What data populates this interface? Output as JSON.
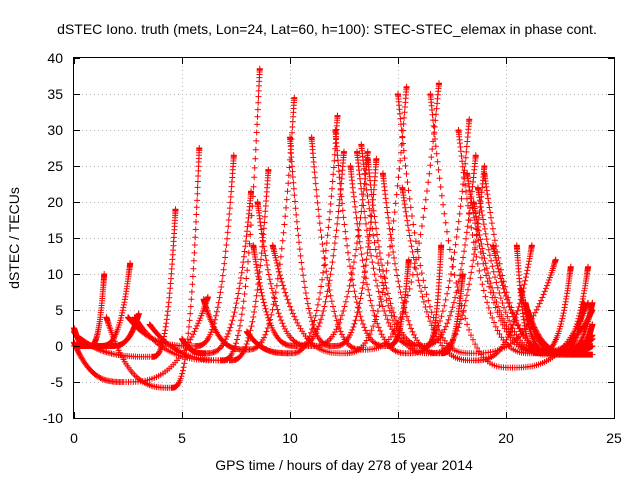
{
  "chart_data": {
    "type": "scatter",
    "title": "dSTEC Iono. truth (mets, Lon=24, Lat=60, h=100): STEC-STEC_elemax in phase cont.",
    "xlabel": "GPS time / hours of day 278 of year 2014",
    "ylabel": "dSTEC  / TECUs",
    "xlim": [
      0,
      25
    ],
    "ylim": [
      -10,
      40
    ],
    "xticks": [
      0,
      5,
      10,
      15,
      20,
      25
    ],
    "yticks": [
      -10,
      -5,
      0,
      5,
      10,
      15,
      20,
      25,
      30,
      35,
      40
    ],
    "grid": true,
    "legend": "none",
    "marker": "+",
    "color": "#ff0000",
    "arcs": [
      {
        "t0": 0.0,
        "tmin": 0.7,
        "t1": 1.4,
        "vmin": 0.0,
        "v0": 2.5,
        "v1": 10.0
      },
      {
        "t0": 0.0,
        "tmin": 1.2,
        "t1": 2.6,
        "vmin": 0.0,
        "v0": 2.0,
        "v1": 11.5
      },
      {
        "t0": 0.0,
        "tmin": 1.7,
        "t1": 3.0,
        "vmin": 0.0,
        "v0": 0.0,
        "v1": 4.5
      },
      {
        "t0": 0.0,
        "tmin": 2.3,
        "t1": 6.2,
        "vmin": -5.0,
        "v0": 0.5,
        "v1": 6.8
      },
      {
        "t0": 0.3,
        "tmin": 3.6,
        "t1": 4.7,
        "vmin": -1.5,
        "v0": 1.0,
        "v1": 19.0
      },
      {
        "t0": 1.5,
        "tmin": 4.5,
        "t1": 5.8,
        "vmin": -5.8,
        "v0": 4.0,
        "v1": 27.5
      },
      {
        "t0": 2.5,
        "tmin": 5.6,
        "t1": 7.4,
        "vmin": 0.0,
        "v0": 4.0,
        "v1": 26.5
      },
      {
        "t0": 2.8,
        "tmin": 6.8,
        "t1": 8.6,
        "vmin": -2.0,
        "v0": 4.0,
        "v1": 38.5
      },
      {
        "t0": 3.5,
        "tmin": 7.2,
        "t1": 9.0,
        "vmin": -2.0,
        "v0": 3.0,
        "v1": 24.5
      },
      {
        "t0": 5.0,
        "tmin": 6.1,
        "t1": 8.2,
        "vmin": -1.0,
        "v0": 1.0,
        "v1": 21.5
      },
      {
        "t0": 6.0,
        "tmin": 8.0,
        "t1": 10.2,
        "vmin": -0.5,
        "v0": 6.5,
        "v1": 34.5
      },
      {
        "t0": 8.0,
        "tmin": 10.0,
        "t1": 12.2,
        "vmin": -1.0,
        "v0": 2.0,
        "v1": 32.0
      },
      {
        "t0": 8.3,
        "tmin": 10.3,
        "t1": 12.5,
        "vmin": 0.0,
        "v0": 14.0,
        "v1": 27.0
      },
      {
        "t0": 8.5,
        "tmin": 11.0,
        "t1": 13.6,
        "vmin": 0.0,
        "v0": 20.0,
        "v1": 27.0
      },
      {
        "t0": 9.2,
        "tmin": 12.5,
        "t1": 15.4,
        "vmin": -1.0,
        "v0": 14.0,
        "v1": 36.0
      },
      {
        "t0": 10.0,
        "tmin": 12.0,
        "t1": 14.0,
        "vmin": 0.0,
        "v0": 29.0,
        "v1": 26.0
      },
      {
        "t0": 11.0,
        "tmin": 13.4,
        "t1": 16.9,
        "vmin": -0.5,
        "v0": 29.0,
        "v1": 36.5
      },
      {
        "t0": 12.1,
        "tmin": 14.5,
        "t1": 15.5,
        "vmin": 0.0,
        "v0": 30.0,
        "v1": 12.0
      },
      {
        "t0": 12.8,
        "tmin": 15.5,
        "t1": 18.3,
        "vmin": -1.0,
        "v0": 25.0,
        "v1": 31.5
      },
      {
        "t0": 13.1,
        "tmin": 16.0,
        "t1": 18.6,
        "vmin": 0.0,
        "v0": 27.0,
        "v1": 26.5
      },
      {
        "t0": 13.3,
        "tmin": 16.5,
        "t1": 19.0,
        "vmin": -1.0,
        "v0": 28.0,
        "v1": 25.0
      },
      {
        "t0": 13.6,
        "tmin": 16.3,
        "t1": 17.0,
        "vmin": 0.0,
        "v0": 26.0,
        "v1": 14.0
      },
      {
        "t0": 14.3,
        "tmin": 17.0,
        "t1": 18.0,
        "vmin": -1.0,
        "v0": 24.0,
        "v1": 10.0
      },
      {
        "t0": 15.0,
        "tmin": 18.4,
        "t1": 22.3,
        "vmin": -1.0,
        "v0": 35.0,
        "v1": 12.0
      },
      {
        "t0": 15.2,
        "tmin": 18.5,
        "t1": 21.2,
        "vmin": -2.0,
        "v0": 22.0,
        "v1": 14.0
      },
      {
        "t0": 16.5,
        "tmin": 20.2,
        "t1": 23.8,
        "vmin": -3.0,
        "v0": 35.0,
        "v1": 6.0
      },
      {
        "t0": 17.8,
        "tmin": 21.2,
        "t1": 24.0,
        "vmin": -1.0,
        "v0": 30.0,
        "v1": 5.0
      },
      {
        "t0": 18.2,
        "tmin": 21.8,
        "t1": 24.0,
        "vmin": -1.0,
        "v0": 24.0,
        "v1": 1.5
      },
      {
        "t0": 18.5,
        "tmin": 22.0,
        "t1": 24.0,
        "vmin": -1.0,
        "v0": 20.0,
        "v1": 1.0
      },
      {
        "t0": 18.7,
        "tmin": 22.2,
        "t1": 24.0,
        "vmin": -1.2,
        "v0": 22.0,
        "v1": -1.2
      },
      {
        "t0": 19.0,
        "tmin": 22.4,
        "t1": 24.0,
        "vmin": -1.0,
        "v0": 24.0,
        "v1": 0.0
      },
      {
        "t0": 19.4,
        "tmin": 22.5,
        "t1": 23.6,
        "vmin": -1.0,
        "v0": 14.0,
        "v1": 6.0
      },
      {
        "t0": 20.5,
        "tmin": 21.5,
        "t1": 23.0,
        "vmin": -1.0,
        "v0": 14.0,
        "v1": 11.0
      },
      {
        "t0": 20.7,
        "tmin": 22.1,
        "t1": 23.8,
        "vmin": -1.0,
        "v0": 8.0,
        "v1": 11.0
      },
      {
        "t0": 20.9,
        "tmin": 22.6,
        "t1": 24.0,
        "vmin": -1.0,
        "v0": 6.0,
        "v1": 6.0
      },
      {
        "t0": 21.0,
        "tmin": 23.0,
        "t1": 24.0,
        "vmin": -1.0,
        "v0": 5.0,
        "v1": 3.0
      }
    ]
  }
}
